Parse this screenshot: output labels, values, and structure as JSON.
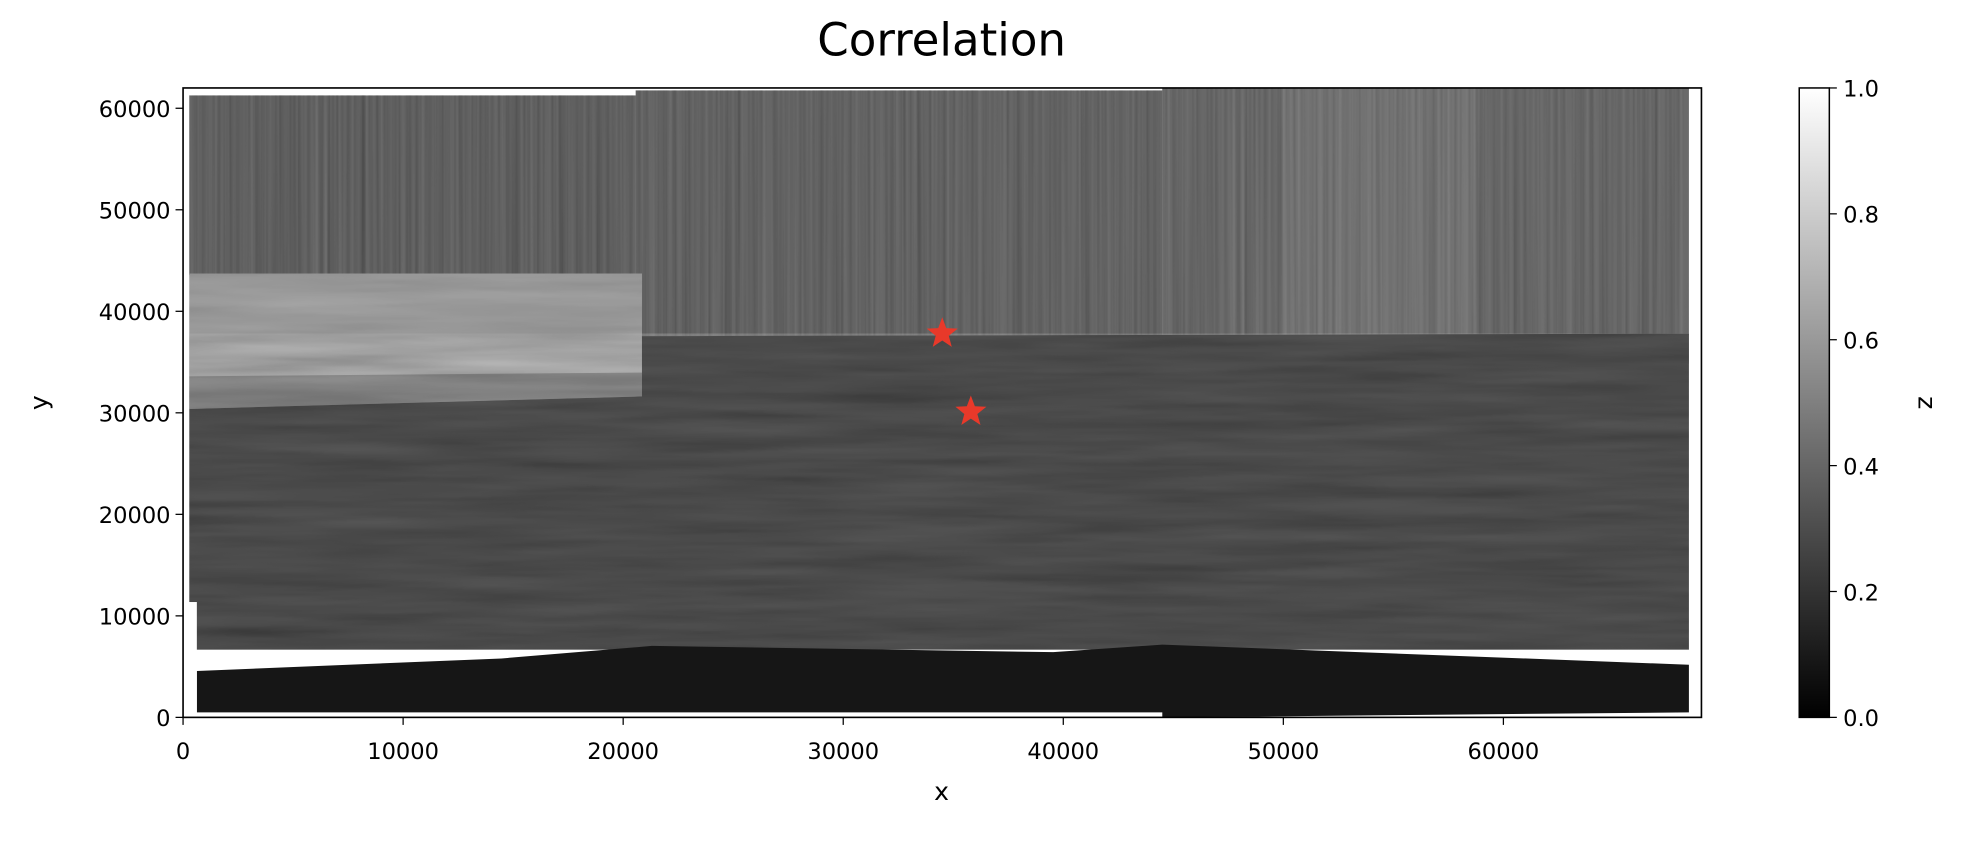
{
  "chart_data": {
    "type": "heatmap",
    "title": "Correlation",
    "xlabel": "x",
    "ylabel": "y",
    "xlim": [
      0,
      69000
    ],
    "ylim": [
      0,
      62000
    ],
    "xticks": [
      0,
      10000,
      20000,
      30000,
      40000,
      50000,
      60000
    ],
    "yticks": [
      0,
      10000,
      20000,
      30000,
      40000,
      50000,
      60000
    ],
    "points": {
      "x": [
        34500,
        35800
      ],
      "y": [
        37800,
        30100
      ],
      "color": "#e8392a"
    },
    "colorbar": {
      "label": "z",
      "clim": [
        0,
        1
      ],
      "cmap": "gray",
      "ticks": [
        {
          "value": 0,
          "label": "0.0"
        },
        0.2,
        0.4,
        0.6,
        0.8,
        {
          "value": 1,
          "label": "1.0"
        }
      ]
    }
  }
}
